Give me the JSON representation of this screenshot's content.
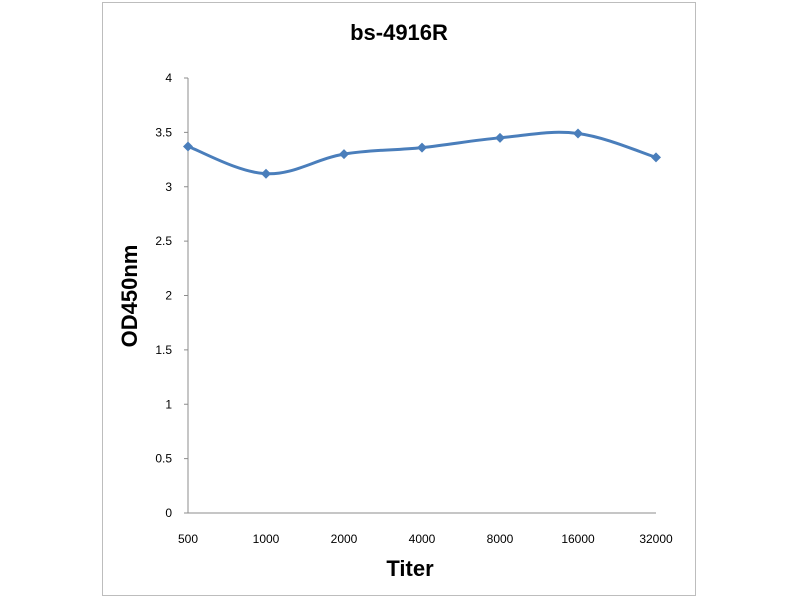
{
  "chart_data": {
    "type": "line",
    "title": "bs-4916R",
    "xlabel": "Titer",
    "ylabel": "OD450nm",
    "categories": [
      "500",
      "1000",
      "2000",
      "4000",
      "8000",
      "16000",
      "32000"
    ],
    "series": [
      {
        "values": [
          3.37,
          3.12,
          3.3,
          3.36,
          3.45,
          3.49,
          3.27
        ]
      }
    ],
    "ylim": [
      0,
      4
    ],
    "yticks": [
      "0",
      "0.5",
      "1",
      "1.5",
      "2",
      "2.5",
      "3",
      "3.5",
      "4"
    ],
    "grid": false,
    "legend": "none",
    "line_color": "#4a7ebb"
  }
}
